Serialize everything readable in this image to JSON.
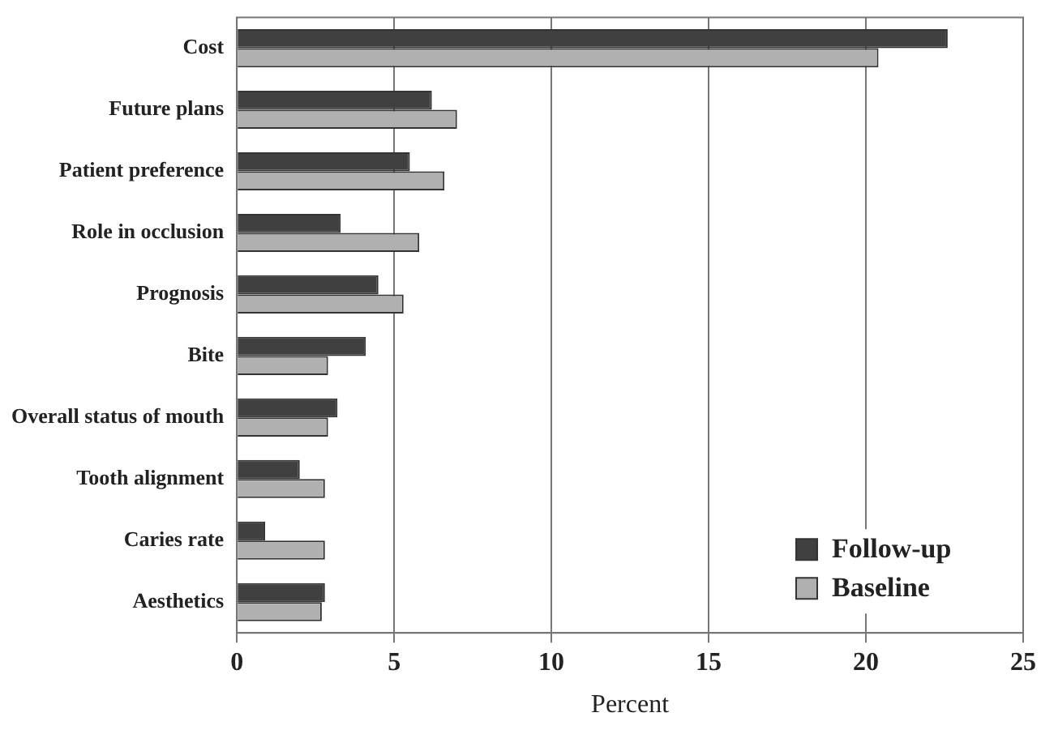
{
  "chart_data": {
    "type": "bar",
    "orientation": "horizontal",
    "xlabel": "Percent",
    "categories": [
      "Cost",
      "Future plans",
      "Patient preference",
      "Role in occlusion",
      "Prognosis",
      "Bite",
      "Overall status of mouth",
      "Tooth alignment",
      "Caries rate",
      "Aesthetics"
    ],
    "series": [
      {
        "name": "Follow-up",
        "color": "#404040",
        "values": [
          22.6,
          6.2,
          5.5,
          3.3,
          4.5,
          4.1,
          3.2,
          2.0,
          0.9,
          2.8
        ]
      },
      {
        "name": "Baseline",
        "color": "#b0b0b0",
        "values": [
          20.4,
          7.0,
          6.6,
          5.8,
          5.3,
          2.9,
          2.9,
          2.8,
          2.8,
          2.7
        ]
      }
    ],
    "xlim": [
      0,
      25
    ],
    "xticks": [
      0,
      5,
      10,
      15,
      20,
      25
    ],
    "grid": "x",
    "legend": "bottom right"
  }
}
